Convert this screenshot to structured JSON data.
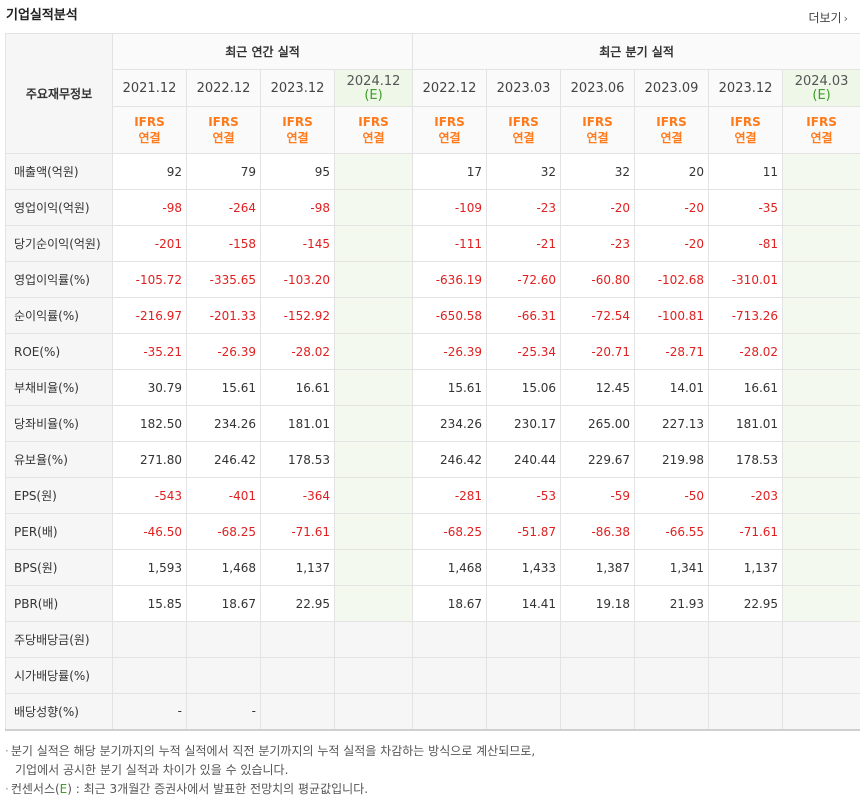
{
  "header": {
    "title": "기업실적분석",
    "more_label": "더보기"
  },
  "table": {
    "row_header": "주요재무정보",
    "group_annual": "최근 연간 실적",
    "group_quarter": "최근 분기 실적",
    "annual_periods": [
      {
        "date": "2021.12",
        "est": "",
        "std": "IFRS",
        "basis": "연결"
      },
      {
        "date": "2022.12",
        "est": "",
        "std": "IFRS",
        "basis": "연결"
      },
      {
        "date": "2023.12",
        "est": "",
        "std": "IFRS",
        "basis": "연결"
      },
      {
        "date": "2024.12",
        "est": "(E)",
        "std": "IFRS",
        "basis": "연결"
      }
    ],
    "quarter_periods": [
      {
        "date": "2022.12",
        "est": "",
        "std": "IFRS",
        "basis": "연결"
      },
      {
        "date": "2023.03",
        "est": "",
        "std": "IFRS",
        "basis": "연결"
      },
      {
        "date": "2023.06",
        "est": "",
        "std": "IFRS",
        "basis": "연결"
      },
      {
        "date": "2023.09",
        "est": "",
        "std": "IFRS",
        "basis": "연결"
      },
      {
        "date": "2023.12",
        "est": "",
        "std": "IFRS",
        "basis": "연결"
      },
      {
        "date": "2024.03",
        "est": "(E)",
        "std": "IFRS",
        "basis": "연결"
      }
    ],
    "rows": [
      {
        "label": "매출액(억원)",
        "annual": [
          "92",
          "79",
          "95",
          ""
        ],
        "quarter": [
          "17",
          "32",
          "32",
          "20",
          "11",
          ""
        ]
      },
      {
        "label": "영업이익(억원)",
        "annual": [
          "-98",
          "-264",
          "-98",
          ""
        ],
        "quarter": [
          "-109",
          "-23",
          "-20",
          "-20",
          "-35",
          ""
        ]
      },
      {
        "label": "당기순이익(억원)",
        "annual": [
          "-201",
          "-158",
          "-145",
          ""
        ],
        "quarter": [
          "-111",
          "-21",
          "-23",
          "-20",
          "-81",
          ""
        ]
      },
      {
        "label": "영업이익률(%)",
        "annual": [
          "-105.72",
          "-335.65",
          "-103.20",
          ""
        ],
        "quarter": [
          "-636.19",
          "-72.60",
          "-60.80",
          "-102.68",
          "-310.01",
          ""
        ]
      },
      {
        "label": "순이익률(%)",
        "annual": [
          "-216.97",
          "-201.33",
          "-152.92",
          ""
        ],
        "quarter": [
          "-650.58",
          "-66.31",
          "-72.54",
          "-100.81",
          "-713.26",
          ""
        ]
      },
      {
        "label": "ROE(%)",
        "annual": [
          "-35.21",
          "-26.39",
          "-28.02",
          ""
        ],
        "quarter": [
          "-26.39",
          "-25.34",
          "-20.71",
          "-28.71",
          "-28.02",
          ""
        ]
      },
      {
        "label": "부채비율(%)",
        "annual": [
          "30.79",
          "15.61",
          "16.61",
          ""
        ],
        "quarter": [
          "15.61",
          "15.06",
          "12.45",
          "14.01",
          "16.61",
          ""
        ]
      },
      {
        "label": "당좌비율(%)",
        "annual": [
          "182.50",
          "234.26",
          "181.01",
          ""
        ],
        "quarter": [
          "234.26",
          "230.17",
          "265.00",
          "227.13",
          "181.01",
          ""
        ]
      },
      {
        "label": "유보율(%)",
        "annual": [
          "271.80",
          "246.42",
          "178.53",
          ""
        ],
        "quarter": [
          "246.42",
          "240.44",
          "229.67",
          "219.98",
          "178.53",
          ""
        ]
      },
      {
        "label": "EPS(원)",
        "annual": [
          "-543",
          "-401",
          "-364",
          ""
        ],
        "quarter": [
          "-281",
          "-53",
          "-59",
          "-50",
          "-203",
          ""
        ]
      },
      {
        "label": "PER(배)",
        "annual": [
          "-46.50",
          "-68.25",
          "-71.61",
          ""
        ],
        "quarter": [
          "-68.25",
          "-51.87",
          "-86.38",
          "-66.55",
          "-71.61",
          ""
        ]
      },
      {
        "label": "BPS(원)",
        "annual": [
          "1,593",
          "1,468",
          "1,137",
          ""
        ],
        "quarter": [
          "1,468",
          "1,433",
          "1,387",
          "1,341",
          "1,137",
          ""
        ]
      },
      {
        "label": "PBR(배)",
        "annual": [
          "15.85",
          "18.67",
          "22.95",
          ""
        ],
        "quarter": [
          "18.67",
          "14.41",
          "19.18",
          "21.93",
          "22.95",
          ""
        ]
      },
      {
        "label": "주당배당금(원)",
        "annual": [
          "",
          "",
          "",
          ""
        ],
        "quarter": [
          "",
          "",
          "",
          "",
          "",
          ""
        ]
      },
      {
        "label": "시가배당률(%)",
        "annual": [
          "",
          "",
          "",
          ""
        ],
        "quarter": [
          "",
          "",
          "",
          "",
          "",
          ""
        ]
      },
      {
        "label": "배당성향(%)",
        "annual": [
          "-",
          "-",
          "",
          ""
        ],
        "quarter": [
          "",
          "",
          "",
          "",
          "",
          ""
        ]
      }
    ]
  },
  "notes": {
    "line1": "분기 실적은 해당 분기까지의 누적 실적에서 직전 분기까지의 누적 실적을 차감하는 방식으로 계산되므로,",
    "line2": "기업에서 공시한 분기 실적과 차이가 있을 수 있습니다.",
    "line3_prefix": "컨센서스(",
    "line3_tag": "E",
    "line3_suffix": ") : 최근 3개월간 증권사에서 발표한 전망치의 평균값입니다."
  },
  "colors": {
    "negative": "#e02020",
    "ifrs": "#ff7a1a",
    "estimate_bg": "#eef7e8",
    "estimate_text": "#3c9f27"
  }
}
